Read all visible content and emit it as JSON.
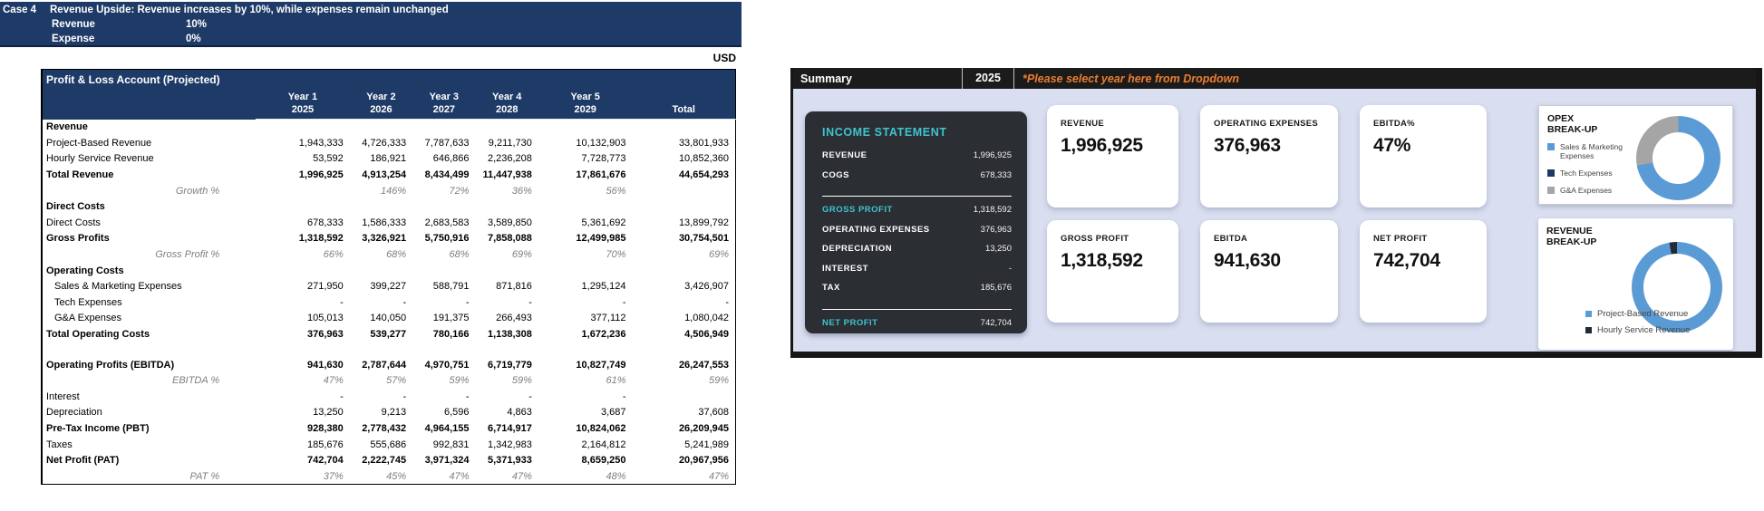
{
  "scenario": {
    "case_label": "Case 4",
    "description": "Revenue Upside: Revenue increases by 10%, while expenses remain unchanged",
    "assumptions": [
      {
        "label": "Revenue",
        "value": "10%"
      },
      {
        "label": "Expense",
        "value": "0%"
      }
    ]
  },
  "currency_label": "USD",
  "pnl_table": {
    "title": "Profit & Loss Account (Projected)",
    "columns": [
      {
        "line1": "Year 1",
        "line2": "2025"
      },
      {
        "line1": "Year 2",
        "line2": "2026"
      },
      {
        "line1": "Year 3",
        "line2": "2027"
      },
      {
        "line1": "Year 4",
        "line2": "2028"
      },
      {
        "line1": "Year 5",
        "line2": "2029"
      },
      {
        "line1": "",
        "line2": "Total"
      }
    ],
    "rows": [
      {
        "type": "section",
        "label": "Revenue",
        "values": [
          "",
          "",
          "",
          "",
          "",
          ""
        ]
      },
      {
        "type": "item",
        "label": "Project-Based Revenue",
        "values": [
          "1,943,333",
          "4,726,333",
          "7,787,633",
          "9,211,730",
          "10,132,903",
          "33,801,933"
        ]
      },
      {
        "type": "item",
        "label": "Hourly Service Revenue",
        "values": [
          "53,592",
          "186,921",
          "646,866",
          "2,236,208",
          "7,728,773",
          "10,852,360"
        ]
      },
      {
        "type": "total",
        "label": "Total Revenue",
        "values": [
          "1,996,925",
          "4,913,254",
          "8,434,499",
          "11,447,938",
          "17,861,676",
          "44,654,293"
        ]
      },
      {
        "type": "pct",
        "label": "Growth %",
        "values": [
          "",
          "146%",
          "72%",
          "36%",
          "56%",
          ""
        ]
      },
      {
        "type": "section",
        "label": "Direct Costs",
        "values": [
          "",
          "",
          "",
          "",
          "",
          ""
        ]
      },
      {
        "type": "item",
        "label": "Direct Costs",
        "values": [
          "678,333",
          "1,586,333",
          "2,683,583",
          "3,589,850",
          "5,361,692",
          "13,899,792"
        ]
      },
      {
        "type": "total",
        "label": "Gross Profits",
        "values": [
          "1,318,592",
          "3,326,921",
          "5,750,916",
          "7,858,088",
          "12,499,985",
          "30,754,501"
        ]
      },
      {
        "type": "pct",
        "label": "Gross Profit %",
        "values": [
          "66%",
          "68%",
          "68%",
          "69%",
          "70%",
          "69%"
        ]
      },
      {
        "type": "section",
        "label": "Operating Costs",
        "values": [
          "",
          "",
          "",
          "",
          "",
          ""
        ]
      },
      {
        "type": "indent",
        "label": "Sales & Marketing Expenses",
        "values": [
          "271,950",
          "399,227",
          "588,791",
          "871,816",
          "1,295,124",
          "3,426,907"
        ]
      },
      {
        "type": "indent",
        "label": "Tech Expenses",
        "values": [
          "-",
          "-",
          "-",
          "-",
          "-",
          "-"
        ]
      },
      {
        "type": "indent",
        "label": "G&A Expenses",
        "values": [
          "105,013",
          "140,050",
          "191,375",
          "266,493",
          "377,112",
          "1,080,042"
        ]
      },
      {
        "type": "total",
        "label": "Total Operating Costs",
        "values": [
          "376,963",
          "539,277",
          "780,166",
          "1,138,308",
          "1,672,236",
          "4,506,949"
        ]
      },
      {
        "type": "blank",
        "label": "",
        "values": [
          "",
          "",
          "",
          "",
          "",
          ""
        ]
      },
      {
        "type": "total",
        "label": "Operating Profits (EBITDA)",
        "values": [
          "941,630",
          "2,787,644",
          "4,970,751",
          "6,719,779",
          "10,827,749",
          "26,247,553"
        ]
      },
      {
        "type": "pct",
        "label": "EBITDA %",
        "values": [
          "47%",
          "57%",
          "59%",
          "59%",
          "61%",
          "59%"
        ]
      },
      {
        "type": "item",
        "label": "Interest",
        "values": [
          "-",
          "-",
          "-",
          "-",
          "-",
          ""
        ]
      },
      {
        "type": "item",
        "label": "Depreciation",
        "values": [
          "13,250",
          "9,213",
          "6,596",
          "4,863",
          "3,687",
          "37,608"
        ]
      },
      {
        "type": "total",
        "label": "Pre-Tax Income (PBT)",
        "values": [
          "928,380",
          "2,778,432",
          "4,964,155",
          "6,714,917",
          "10,824,062",
          "26,209,945"
        ]
      },
      {
        "type": "item",
        "label": "Taxes",
        "values": [
          "185,676",
          "555,686",
          "992,831",
          "1,342,983",
          "2,164,812",
          "5,241,989"
        ]
      },
      {
        "type": "total",
        "label": "Net Profit (PAT)",
        "values": [
          "742,704",
          "2,222,745",
          "3,971,324",
          "5,371,933",
          "8,659,250",
          "20,967,956"
        ]
      },
      {
        "type": "pct",
        "label": "PAT %",
        "values": [
          "37%",
          "45%",
          "47%",
          "47%",
          "48%",
          "47%"
        ]
      }
    ]
  },
  "summary": {
    "title": "Summary",
    "selected_year": "2025",
    "hint": "*Please select year here from Dropdown",
    "income_statement": {
      "title": "INCOME STATEMENT",
      "rows": [
        {
          "label": "REVENUE",
          "value": "1,996,925",
          "accent": false,
          "divider_after": false
        },
        {
          "label": "COGS",
          "value": "678,333",
          "accent": false,
          "divider_after": true
        },
        {
          "label": "GROSS PROFIT",
          "value": "1,318,592",
          "accent": true,
          "divider_after": false
        },
        {
          "label": "OPERATING EXPENSES",
          "value": "376,963",
          "accent": false,
          "divider_after": false
        },
        {
          "label": "DEPRECIATION",
          "value": "13,250",
          "accent": false,
          "divider_after": false
        },
        {
          "label": "INTEREST",
          "value": "-",
          "accent": false,
          "divider_after": false
        },
        {
          "label": "TAX",
          "value": "185,676",
          "accent": false,
          "divider_after": true
        },
        {
          "label": "NET PROFIT",
          "value": "742,704",
          "accent": true,
          "divider_after": false
        }
      ]
    },
    "kpi_cards": [
      {
        "label": "REVENUE",
        "value": "1,996,925"
      },
      {
        "label": "OPERATING EXPENSES",
        "value": "376,963"
      },
      {
        "label": "EBITDA%",
        "value": "47%"
      },
      {
        "label": "GROSS PROFIT",
        "value": "1,318,592"
      },
      {
        "label": "EBITDA",
        "value": "941,630"
      },
      {
        "label": "NET PROFIT",
        "value": "742,704"
      }
    ]
  },
  "colors": {
    "navy": "#1e3a66",
    "accent_blue": "#5B9BD5",
    "dark_navy": "#24304a",
    "gray": "#A5A5A5",
    "teal": "#3fc4cf",
    "orange": "#ED7D31"
  },
  "chart_data": [
    {
      "type": "pie",
      "donut": true,
      "title": "OPEX\nBREAK-UP",
      "title_lines": [
        "OPEX",
        "BREAK-UP"
      ],
      "labels": [
        "Sales & Marketing Expenses",
        "Tech Expenses",
        "G&A Expenses"
      ],
      "values": [
        271950,
        0,
        105013
      ],
      "colors": [
        "#5B9BD5",
        "#1F3864",
        "#A5A5A5"
      ],
      "legend_position": "left"
    },
    {
      "type": "pie",
      "donut": true,
      "title": "REVENUE\nBREAK-UP",
      "title_lines": [
        "REVENUE",
        "BREAK-UP"
      ],
      "labels": [
        "Project-Based Revenue",
        "Hourly Service Revenue"
      ],
      "values": [
        1943333,
        53592
      ],
      "colors": [
        "#5B9BD5",
        "#222A35"
      ],
      "legend_position": "bottom"
    }
  ]
}
